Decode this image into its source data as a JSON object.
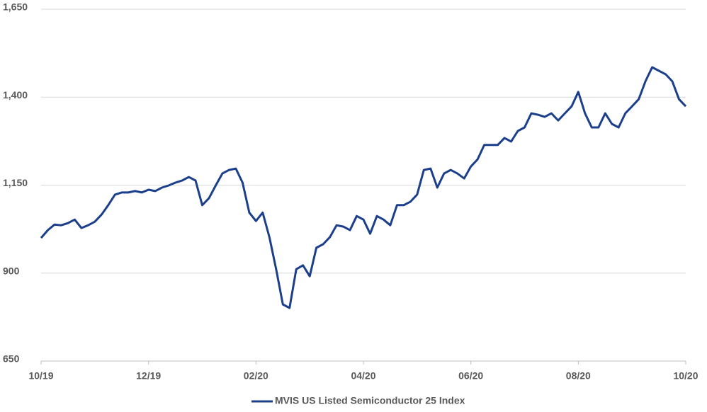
{
  "chart_data": {
    "type": "line",
    "categories": [
      "10/19",
      null,
      null,
      null,
      null,
      null,
      null,
      null,
      null,
      null,
      null,
      null,
      null,
      null,
      null,
      null,
      "12/19",
      null,
      null,
      null,
      null,
      null,
      null,
      null,
      null,
      null,
      null,
      null,
      null,
      null,
      null,
      null,
      "02/20",
      null,
      null,
      null,
      null,
      null,
      null,
      null,
      null,
      null,
      null,
      null,
      null,
      null,
      null,
      null,
      "04/20",
      null,
      null,
      null,
      null,
      null,
      null,
      null,
      null,
      null,
      null,
      null,
      null,
      null,
      null,
      null,
      "06/20",
      null,
      null,
      null,
      null,
      null,
      null,
      null,
      null,
      null,
      null,
      null,
      null,
      null,
      null,
      null,
      "08/20",
      null,
      null,
      null,
      null,
      null,
      null,
      null,
      null,
      null,
      null,
      null,
      null,
      null,
      null,
      null,
      "10/20"
    ],
    "series": [
      {
        "name": "MVIS US Listed Semiconductor 25 Index",
        "color": "#1c3f8c",
        "values": [
          1000,
          1022,
          1038,
          1036,
          1042,
          1052,
          1028,
          1036,
          1046,
          1066,
          1093,
          1123,
          1129,
          1129,
          1133,
          1129,
          1137,
          1133,
          1143,
          1149,
          1157,
          1163,
          1173,
          1163,
          1093,
          1113,
          1149,
          1183,
          1193,
          1197,
          1157,
          1072,
          1048,
          1072,
          1002,
          911,
          811,
          801,
          911,
          922,
          891,
          972,
          982,
          1002,
          1036,
          1032,
          1022,
          1062,
          1052,
          1012,
          1062,
          1052,
          1036,
          1093,
          1093,
          1103,
          1123,
          1193,
          1197,
          1143,
          1183,
          1193,
          1183,
          1169,
          1203,
          1223,
          1264,
          1264,
          1264,
          1284,
          1274,
          1304,
          1314,
          1354,
          1350,
          1344,
          1354,
          1334,
          1354,
          1374,
          1415,
          1354,
          1314,
          1314,
          1354,
          1324,
          1314,
          1354,
          1374,
          1394,
          1445,
          1485,
          1475,
          1465,
          1445,
          1394,
          1374
        ]
      }
    ],
    "ylim": [
      650,
      1650
    ],
    "yticks": [
      650,
      900,
      {
        "value": 1150,
        "label": "1,150"
      },
      {
        "value": 1400,
        "label": "1,400"
      },
      {
        "value": 1650,
        "label": "1,650"
      }
    ],
    "grid": true,
    "legend": "bottom"
  }
}
